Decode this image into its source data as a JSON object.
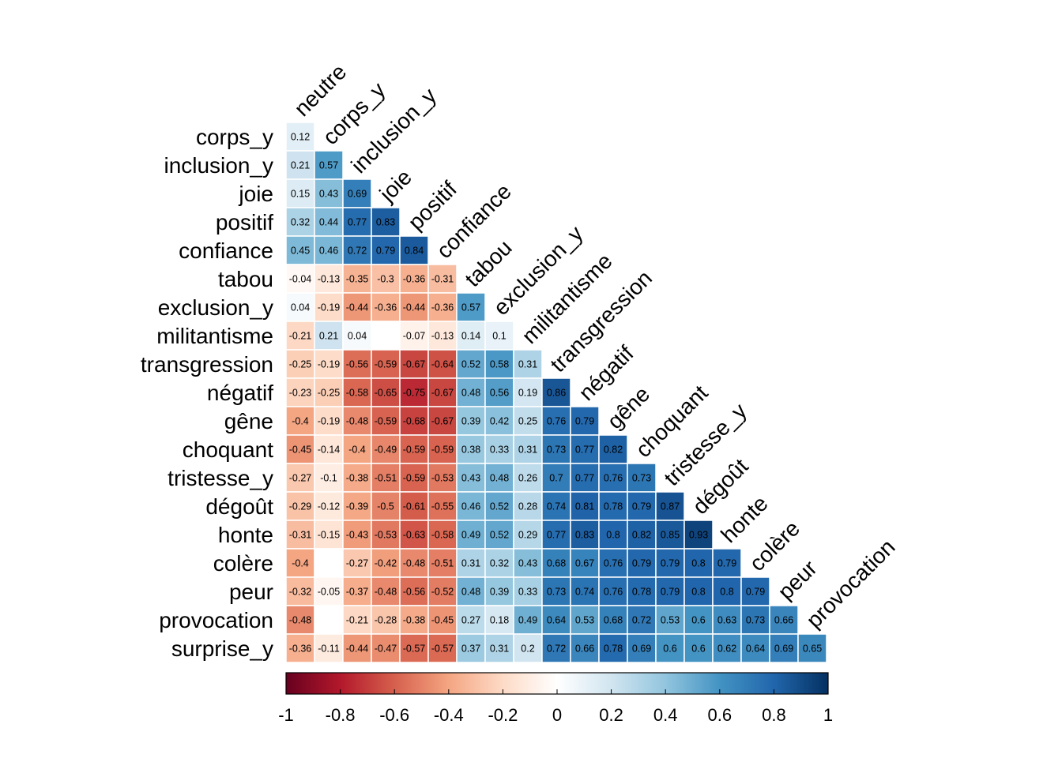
{
  "chart_data": {
    "type": "heatmap",
    "title": "",
    "variables": [
      "neutre",
      "corps_y",
      "inclusion_y",
      "joie",
      "positif",
      "confiance",
      "tabou",
      "exclusion_y",
      "militantisme",
      "transgression",
      "négatif",
      "gêne",
      "choquant",
      "tristesse_y",
      "dégoût",
      "honte",
      "colère",
      "peur",
      "provocation",
      "surprise_y"
    ],
    "row_labels": [
      "corps_y",
      "inclusion_y",
      "joie",
      "positif",
      "confiance",
      "tabou",
      "exclusion_y",
      "militantisme",
      "transgression",
      "négatif",
      "gêne",
      "choquant",
      "tristesse_y",
      "dégoût",
      "honte",
      "colère",
      "peur",
      "provocation",
      "surprise_y"
    ],
    "col_labels": [
      "neutre",
      "corps_y",
      "inclusion_y",
      "joie",
      "positif",
      "confiance",
      "tabou",
      "exclusion_y",
      "militantisme",
      "transgression",
      "négatif",
      "gêne",
      "choquant",
      "tristesse_y",
      "dégoût",
      "honte",
      "colère",
      "peur",
      "provocation"
    ],
    "values": [
      [
        0.12
      ],
      [
        0.21,
        0.57
      ],
      [
        0.15,
        0.43,
        0.69
      ],
      [
        0.32,
        0.44,
        0.77,
        0.83
      ],
      [
        0.45,
        0.46,
        0.72,
        0.79,
        0.84
      ],
      [
        -0.04,
        -0.13,
        -0.35,
        -0.3,
        -0.36,
        -0.31
      ],
      [
        0.04,
        -0.19,
        -0.44,
        -0.36,
        -0.44,
        -0.36,
        0.57
      ],
      [
        -0.21,
        0.21,
        0.04,
        null,
        -0.07,
        -0.13,
        0.14,
        0.1
      ],
      [
        -0.25,
        -0.19,
        -0.56,
        -0.59,
        -0.67,
        -0.64,
        0.52,
        0.58,
        0.31
      ],
      [
        -0.23,
        -0.25,
        -0.58,
        -0.65,
        -0.75,
        -0.67,
        0.48,
        0.56,
        0.19,
        0.86
      ],
      [
        -0.4,
        -0.19,
        -0.48,
        -0.59,
        -0.68,
        -0.67,
        0.39,
        0.42,
        0.25,
        0.76,
        0.79
      ],
      [
        -0.45,
        -0.14,
        -0.4,
        -0.49,
        -0.59,
        -0.59,
        0.38,
        0.33,
        0.31,
        0.73,
        0.77,
        0.82
      ],
      [
        -0.27,
        -0.1,
        -0.38,
        -0.51,
        -0.59,
        -0.53,
        0.43,
        0.48,
        0.26,
        0.7,
        0.77,
        0.76,
        0.73
      ],
      [
        -0.29,
        -0.12,
        -0.39,
        -0.5,
        -0.61,
        -0.55,
        0.46,
        0.52,
        0.28,
        0.74,
        0.81,
        0.78,
        0.79,
        0.87
      ],
      [
        -0.31,
        -0.15,
        -0.43,
        -0.53,
        -0.63,
        -0.58,
        0.49,
        0.52,
        0.29,
        0.77,
        0.83,
        0.8,
        0.82,
        0.85,
        0.93
      ],
      [
        -0.4,
        null,
        -0.27,
        -0.42,
        -0.48,
        -0.51,
        0.31,
        0.32,
        0.43,
        0.68,
        0.67,
        0.76,
        0.79,
        0.79,
        0.8,
        0.79
      ],
      [
        -0.32,
        -0.05,
        -0.37,
        -0.48,
        -0.56,
        -0.52,
        0.48,
        0.39,
        0.33,
        0.73,
        0.74,
        0.76,
        0.78,
        0.79,
        0.8,
        0.8,
        0.79
      ],
      [
        -0.48,
        null,
        -0.21,
        -0.28,
        -0.38,
        -0.45,
        0.27,
        0.18,
        0.49,
        0.64,
        0.53,
        0.68,
        0.72,
        0.53,
        0.6,
        0.63,
        0.73,
        0.66
      ],
      [
        -0.36,
        -0.11,
        -0.44,
        -0.47,
        -0.57,
        -0.57,
        0.37,
        0.31,
        0.2,
        0.72,
        0.66,
        0.78,
        0.69,
        0.6,
        0.6,
        0.62,
        0.64,
        0.69,
        0.65
      ]
    ],
    "colorbar": {
      "range": [
        -1,
        1
      ],
      "ticks": [
        "-1",
        "-0.8",
        "-0.6",
        "-0.4",
        "-0.2",
        "0",
        "0.2",
        "0.4",
        "0.6",
        "0.8",
        "1"
      ],
      "palette": [
        "#67001F",
        "#B2182B",
        "#D6604D",
        "#F4A582",
        "#FDDBC7",
        "#FFFFFF",
        "#D1E5F0",
        "#92C5DE",
        "#4393C3",
        "#2166AC",
        "#053061"
      ]
    }
  }
}
